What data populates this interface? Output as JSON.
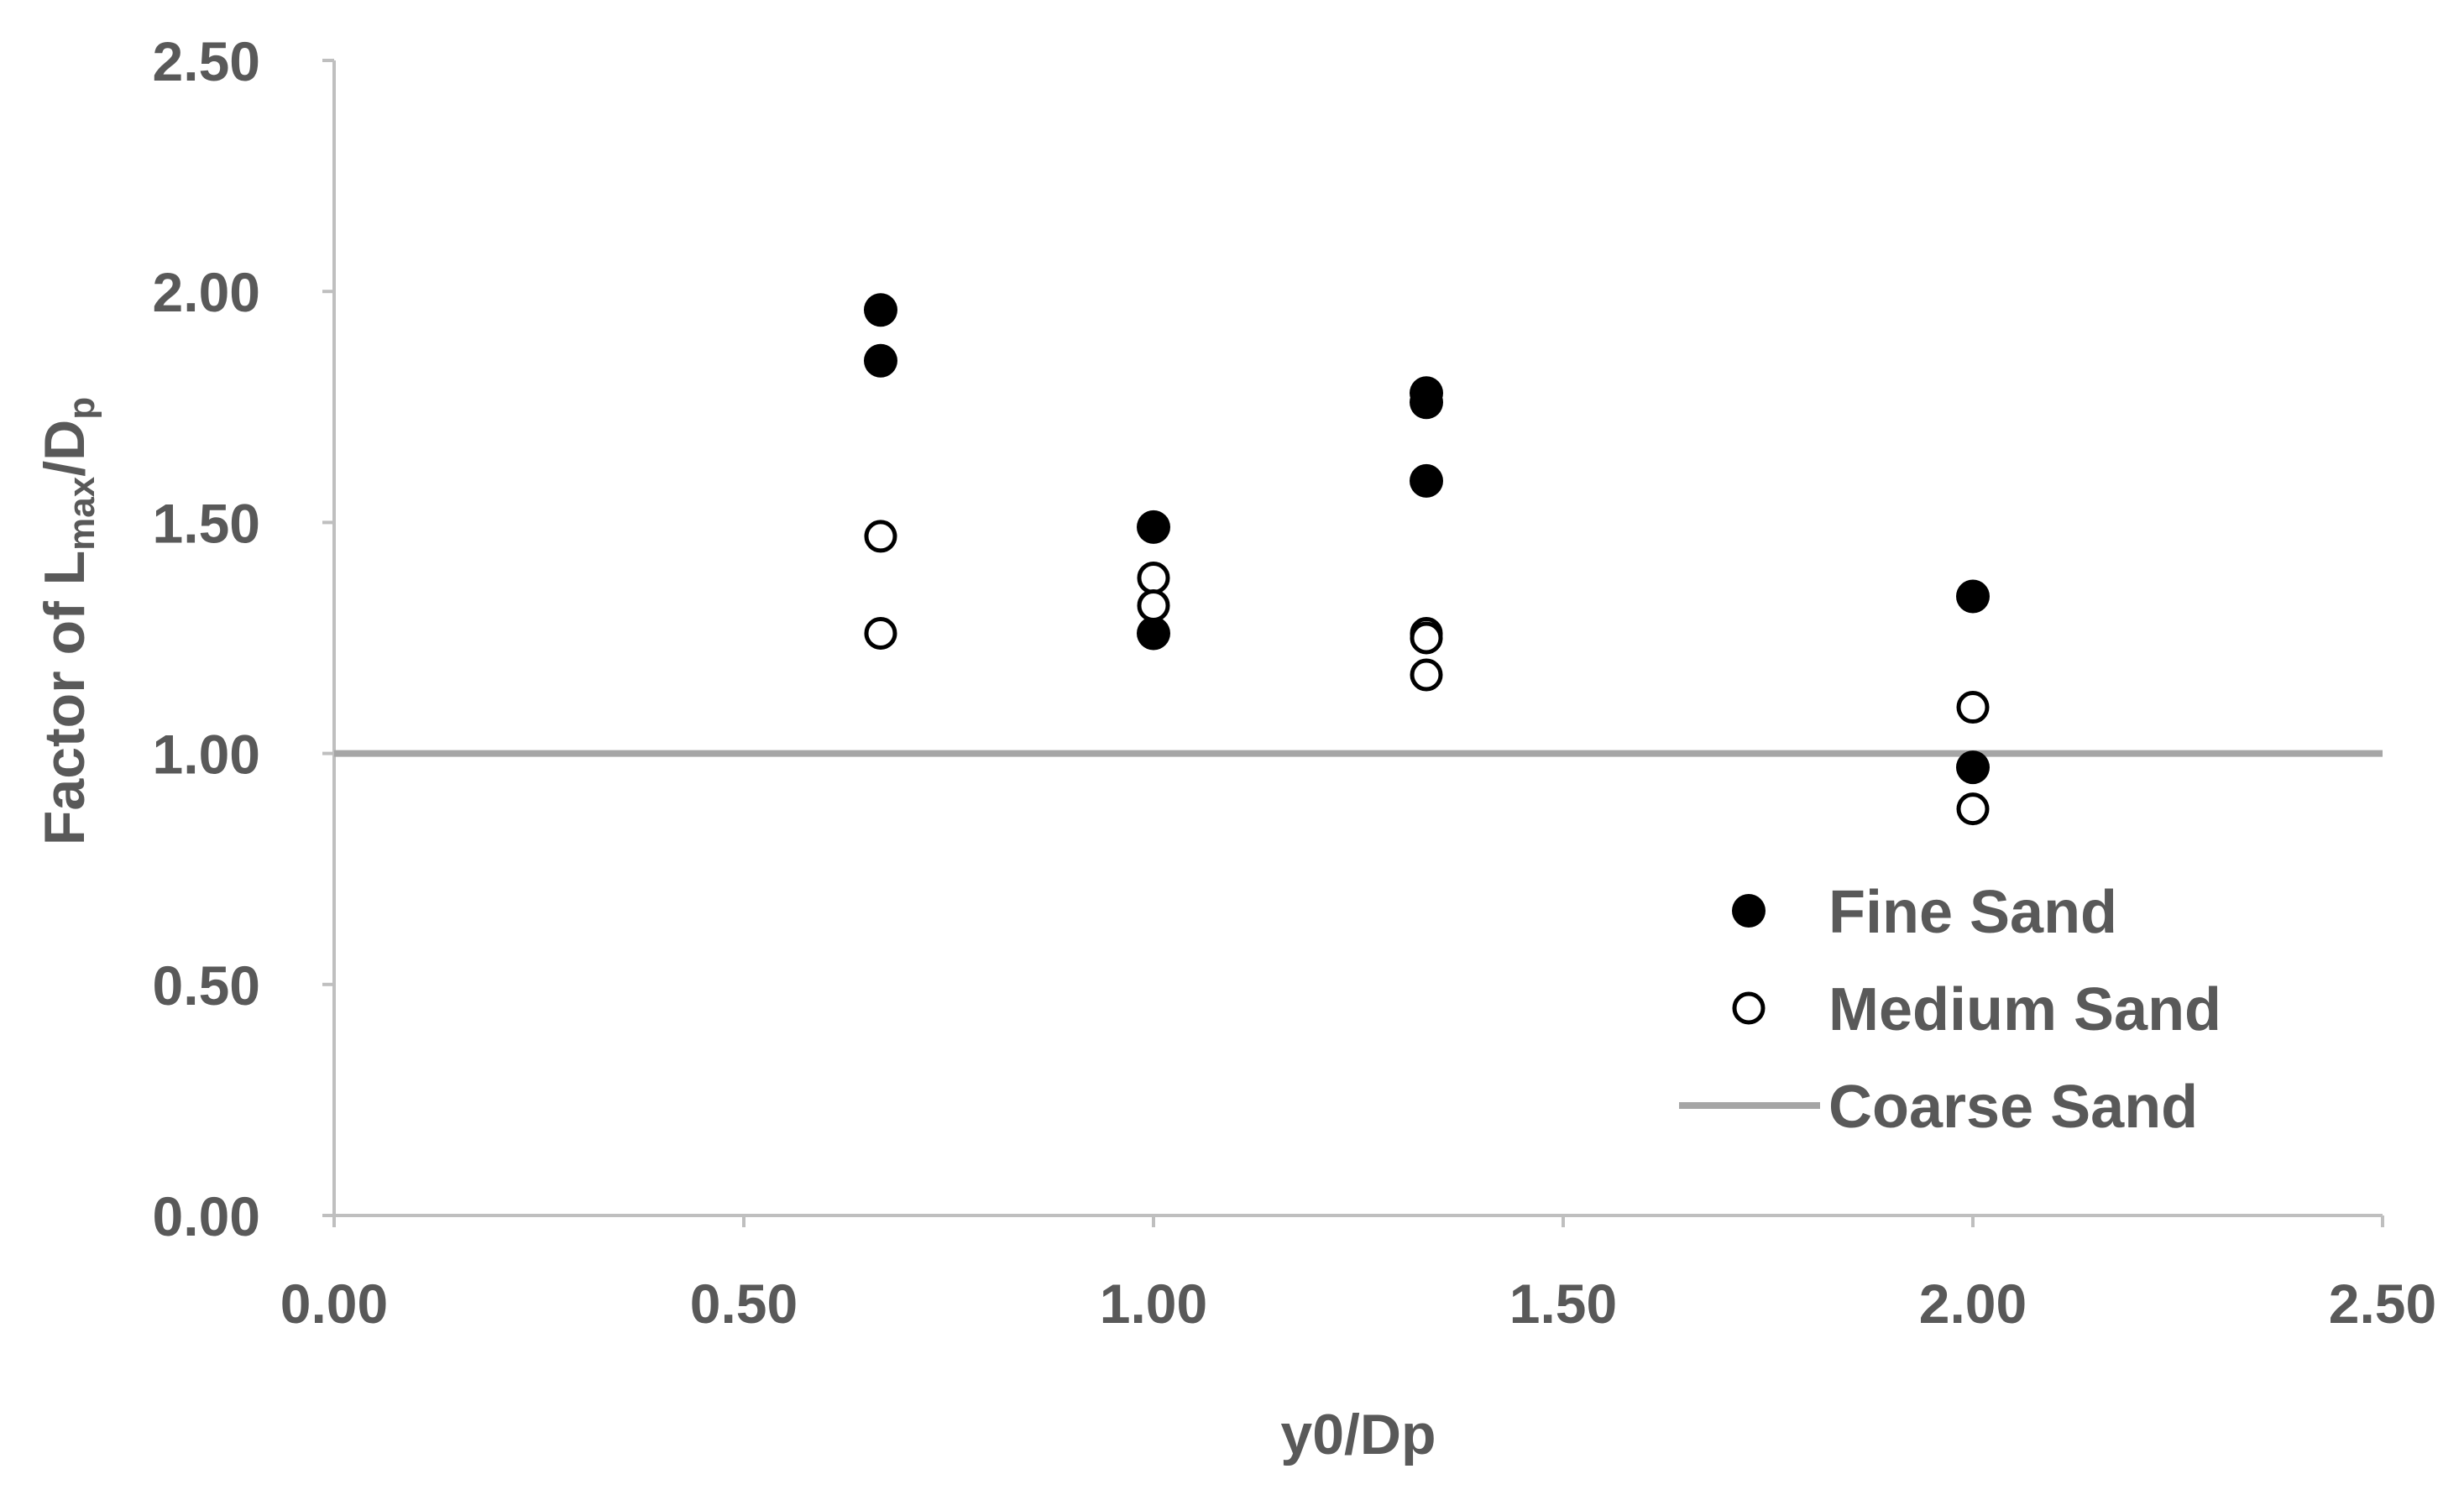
{
  "chart_data": {
    "type": "scatter",
    "xlabel": "y0/Dp",
    "ylabel": {
      "prefix": "Factor of L",
      "sub1": "max",
      "mid": "/D",
      "sub2": "p"
    },
    "xlim": [
      0,
      2.5
    ],
    "ylim": [
      0,
      2.5
    ],
    "xticks": [
      "0.00",
      "0.50",
      "1.00",
      "1.50",
      "2.00",
      "2.50"
    ],
    "yticks": [
      "0.00",
      "0.50",
      "1.00",
      "1.50",
      "2.00",
      "2.50"
    ],
    "grid": false,
    "legend_position": "bottom-right",
    "series": [
      {
        "name": "Fine Sand",
        "marker": "filled-circle",
        "color": "#000000",
        "points": [
          {
            "x": 0.667,
            "y": 1.96
          },
          {
            "x": 0.667,
            "y": 1.85
          },
          {
            "x": 1.0,
            "y": 1.49
          },
          {
            "x": 1.0,
            "y": 1.26
          },
          {
            "x": 1.333,
            "y": 1.78
          },
          {
            "x": 1.333,
            "y": 1.76
          },
          {
            "x": 1.333,
            "y": 1.59
          },
          {
            "x": 2.0,
            "y": 1.34
          },
          {
            "x": 2.0,
            "y": 0.97
          }
        ]
      },
      {
        "name": "Medium Sand",
        "marker": "open-circle",
        "color": "#000000",
        "points": [
          {
            "x": 0.667,
            "y": 1.47
          },
          {
            "x": 0.667,
            "y": 1.26
          },
          {
            "x": 1.0,
            "y": 1.38
          },
          {
            "x": 1.0,
            "y": 1.32
          },
          {
            "x": 1.333,
            "y": 1.26
          },
          {
            "x": 1.333,
            "y": 1.25
          },
          {
            "x": 1.333,
            "y": 1.17
          },
          {
            "x": 2.0,
            "y": 1.1
          },
          {
            "x": 2.0,
            "y": 0.88
          }
        ]
      },
      {
        "name": "Coarse Sand",
        "marker": "line",
        "color": "#A6A6A6",
        "y": 1.0
      }
    ]
  }
}
